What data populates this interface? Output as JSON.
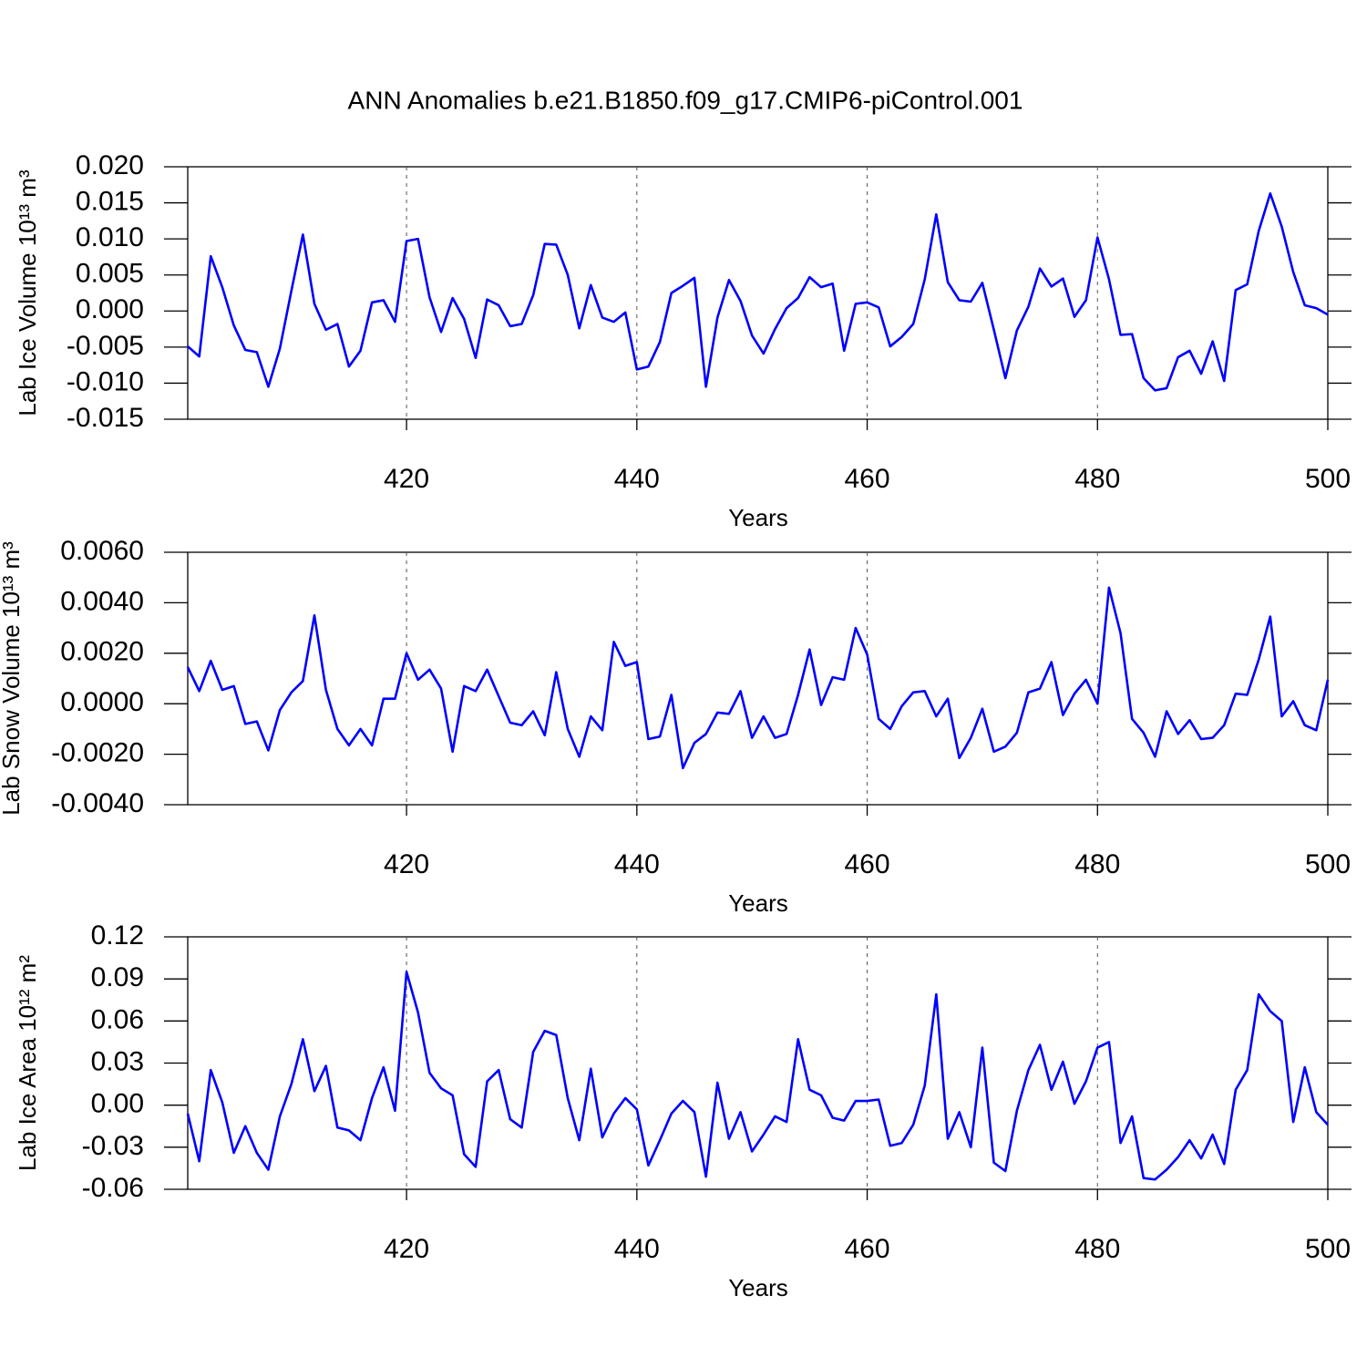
{
  "chart_data": [
    {
      "type": "line",
      "title": "ANN Anomalies b.e21.B1850.f09_g17.CMIP6-piControl.001",
      "ylabel": "Lab Ice Volume 10¹³ m³",
      "xlabel": "Years",
      "x": [
        401,
        402,
        403,
        404,
        405,
        406,
        407,
        408,
        409,
        410,
        411,
        412,
        413,
        414,
        415,
        416,
        417,
        418,
        419,
        420,
        421,
        422,
        423,
        424,
        425,
        426,
        427,
        428,
        429,
        430,
        431,
        432,
        433,
        434,
        435,
        436,
        437,
        438,
        439,
        440,
        441,
        442,
        443,
        444,
        445,
        446,
        447,
        448,
        449,
        450,
        451,
        452,
        453,
        454,
        455,
        456,
        457,
        458,
        459,
        460,
        461,
        462,
        463,
        464,
        465,
        466,
        467,
        468,
        469,
        470,
        471,
        472,
        473,
        474,
        475,
        476,
        477,
        478,
        479,
        480,
        481,
        482,
        483,
        484,
        485,
        486,
        487,
        488,
        489,
        490,
        491,
        492,
        493,
        494,
        495,
        496,
        497,
        498,
        499,
        500
      ],
      "series": [
        {
          "color": "#0000ff",
          "values": [
            -0.0049,
            -0.0063,
            0.0076,
            0.0033,
            -0.002,
            -0.0054,
            -0.0057,
            -0.0105,
            -0.0052,
            0.0028,
            0.0106,
            0.001,
            -0.0026,
            -0.0018,
            -0.0077,
            -0.0055,
            0.0012,
            0.0015,
            -0.0015,
            0.0097,
            0.01,
            0.0019,
            -0.0029,
            0.0018,
            -0.0011,
            -0.0065,
            0.0016,
            0.0008,
            -0.0021,
            -0.0018,
            0.0022,
            0.0093,
            0.0092,
            0.005,
            -0.0024,
            0.0036,
            -0.0009,
            -0.0015,
            -0.0002,
            -0.0081,
            -0.0077,
            -0.0043,
            0.0025,
            0.0035,
            0.0046,
            -0.0105,
            -0.0009,
            0.0043,
            0.0014,
            -0.0034,
            -0.0059,
            -0.0025,
            0.0004,
            0.0018,
            0.0047,
            0.0033,
            0.0038,
            -0.0055,
            0.001,
            0.0012,
            0.0005,
            -0.0049,
            -0.0036,
            -0.0018,
            0.0044,
            0.0134,
            0.004,
            0.0015,
            0.0013,
            0.0039,
            -0.0026,
            -0.0093,
            -0.0027,
            0.0006,
            0.0059,
            0.0034,
            0.0045,
            -0.0008,
            0.0015,
            0.0102,
            0.0044,
            -0.0033,
            -0.0032,
            -0.0093,
            -0.011,
            -0.0107,
            -0.0064,
            -0.0055,
            -0.0087,
            -0.0042,
            -0.0097,
            0.0029,
            0.0037,
            0.0111,
            0.0163,
            0.0117,
            0.0054,
            0.0008,
            0.0004,
            -0.0005
          ]
        }
      ],
      "xlim": [
        401,
        500
      ],
      "xticks": [
        420,
        440,
        460,
        480,
        500
      ],
      "xgrid": true,
      "ylim": [
        -0.015,
        0.02
      ],
      "yticks": [
        {
          "value": 0.02,
          "label": "0.020"
        },
        0.015,
        {
          "value": 0.01,
          "label": "0.010"
        },
        0.005,
        {
          "value": 0,
          "label": "0.000"
        },
        -0.005,
        {
          "value": -0.01,
          "label": "-0.010"
        },
        -0.015
      ]
    },
    {
      "type": "line",
      "ylabel": "Lab Snow Volume 10¹³ m³",
      "xlabel": "Years",
      "x": [
        401,
        402,
        403,
        404,
        405,
        406,
        407,
        408,
        409,
        410,
        411,
        412,
        413,
        414,
        415,
        416,
        417,
        418,
        419,
        420,
        421,
        422,
        423,
        424,
        425,
        426,
        427,
        428,
        429,
        430,
        431,
        432,
        433,
        434,
        435,
        436,
        437,
        438,
        439,
        440,
        441,
        442,
        443,
        444,
        445,
        446,
        447,
        448,
        449,
        450,
        451,
        452,
        453,
        454,
        455,
        456,
        457,
        458,
        459,
        460,
        461,
        462,
        463,
        464,
        465,
        466,
        467,
        468,
        469,
        470,
        471,
        472,
        473,
        474,
        475,
        476,
        477,
        478,
        479,
        480,
        481,
        482,
        483,
        484,
        485,
        486,
        487,
        488,
        489,
        490,
        491,
        492,
        493,
        494,
        495,
        496,
        497,
        498,
        499,
        500
      ],
      "series": [
        {
          "color": "#0000ff",
          "values": [
            0.00145,
            0.0005,
            0.0017,
            0.00055,
            0.0007,
            -0.0008,
            -0.0007,
            -0.00185,
            -0.00025,
            0.00045,
            0.0009,
            0.0035,
            0.00055,
            -0.001,
            -0.00165,
            -0.001,
            -0.00165,
            0.0002,
            0.0002,
            0.002,
            0.00095,
            0.00135,
            0.0006,
            -0.0019,
            0.0007,
            0.0005,
            0.00135,
            0.0003,
            -0.00075,
            -0.00085,
            -0.0003,
            -0.00125,
            0.00125,
            -0.001,
            -0.0021,
            -0.0005,
            -0.00105,
            0.00245,
            0.0015,
            0.00165,
            -0.0014,
            -0.0013,
            0.00035,
            -0.00255,
            -0.00155,
            -0.0012,
            -0.00035,
            -0.0004,
            0.0005,
            -0.00135,
            -0.0005,
            -0.00135,
            -0.0012,
            0.00035,
            0.00215,
            -5e-05,
            0.00105,
            0.00095,
            0.003,
            0.00195,
            -0.0006,
            -0.001,
            -0.0001,
            0.00045,
            0.0005,
            -0.0005,
            0.0002,
            -0.00215,
            -0.00135,
            -0.0002,
            -0.0019,
            -0.0017,
            -0.00115,
            0.00045,
            0.0006,
            0.00165,
            -0.00045,
            0.0004,
            0.00095,
            0.0,
            0.0046,
            0.0028,
            -0.0006,
            -0.00115,
            -0.0021,
            -0.0003,
            -0.0012,
            -0.00065,
            -0.0014,
            -0.00135,
            -0.00085,
            0.0004,
            0.00035,
            0.00175,
            0.00345,
            -0.0005,
            0.0001,
            -0.00085,
            -0.00105,
            0.00095
          ]
        }
      ],
      "xlim": [
        401,
        500
      ],
      "xticks": [
        420,
        440,
        460,
        480,
        500
      ],
      "xgrid": true,
      "ylim": [
        -0.004,
        0.006
      ],
      "yticks": [
        {
          "value": 0.006,
          "label": "0.0060"
        },
        {
          "value": 0.004,
          "label": "0.0040"
        },
        {
          "value": 0.002,
          "label": "0.0020"
        },
        {
          "value": 0,
          "label": "0.0000"
        },
        {
          "value": -0.002,
          "label": "-0.0020"
        },
        {
          "value": -0.004,
          "label": "-0.0040"
        }
      ]
    },
    {
      "type": "line",
      "ylabel": "Lab Ice Area 10¹² m²",
      "xlabel": "Years",
      "x": [
        401,
        402,
        403,
        404,
        405,
        406,
        407,
        408,
        409,
        410,
        411,
        412,
        413,
        414,
        415,
        416,
        417,
        418,
        419,
        420,
        421,
        422,
        423,
        424,
        425,
        426,
        427,
        428,
        429,
        430,
        431,
        432,
        433,
        434,
        435,
        436,
        437,
        438,
        439,
        440,
        441,
        442,
        443,
        444,
        445,
        446,
        447,
        448,
        449,
        450,
        451,
        452,
        453,
        454,
        455,
        456,
        457,
        458,
        459,
        460,
        461,
        462,
        463,
        464,
        465,
        466,
        467,
        468,
        469,
        470,
        471,
        472,
        473,
        474,
        475,
        476,
        477,
        478,
        479,
        480,
        481,
        482,
        483,
        484,
        485,
        486,
        487,
        488,
        489,
        490,
        491,
        492,
        493,
        494,
        495,
        496,
        497,
        498,
        499,
        500
      ],
      "series": [
        {
          "color": "#0000ff",
          "values": [
            -0.006,
            -0.04,
            0.025,
            0.002,
            -0.034,
            -0.015,
            -0.034,
            -0.046,
            -0.008,
            0.015,
            0.047,
            0.01,
            0.028,
            -0.016,
            -0.018,
            -0.025,
            0.005,
            0.027,
            -0.004,
            0.095,
            0.066,
            0.023,
            0.012,
            0.007,
            -0.035,
            -0.044,
            0.017,
            0.025,
            -0.01,
            -0.016,
            0.038,
            0.053,
            0.05,
            0.005,
            -0.025,
            0.026,
            -0.023,
            -0.006,
            0.005,
            -0.003,
            -0.043,
            -0.025,
            -0.006,
            0.003,
            -0.005,
            -0.051,
            0.016,
            -0.024,
            -0.005,
            -0.033,
            -0.021,
            -0.008,
            -0.012,
            0.047,
            0.011,
            0.007,
            -0.009,
            -0.011,
            0.003,
            0.003,
            0.004,
            -0.029,
            -0.027,
            -0.014,
            0.014,
            0.079,
            -0.024,
            -0.005,
            -0.03,
            0.041,
            -0.041,
            -0.047,
            -0.004,
            0.025,
            0.043,
            0.011,
            0.031,
            0.001,
            0.017,
            0.041,
            0.045,
            -0.027,
            -0.008,
            -0.052,
            -0.053,
            -0.046,
            -0.037,
            -0.025,
            -0.038,
            -0.021,
            -0.042,
            0.011,
            0.025,
            0.079,
            0.067,
            0.06,
            -0.012,
            0.027,
            -0.005,
            -0.014
          ]
        }
      ],
      "xlim": [
        401,
        500
      ],
      "xticks": [
        420,
        440,
        460,
        480,
        500
      ],
      "xgrid": true,
      "ylim": [
        -0.06,
        0.12
      ],
      "yticks": [
        0.12,
        0.09,
        0.06,
        0.03,
        {
          "value": 0,
          "label": "0.00"
        },
        -0.03,
        -0.06
      ]
    }
  ]
}
